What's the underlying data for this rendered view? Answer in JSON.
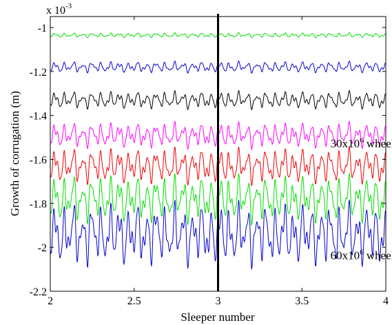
{
  "chart_data": {
    "type": "line",
    "title": "",
    "xlabel": "Sleeper number",
    "ylabel": "Growth of corrugation (m)",
    "y_scale_label": "x 10",
    "y_scale_exponent": "-3",
    "xlim": [
      2,
      4
    ],
    "ylim": [
      -2.2,
      -0.95
    ],
    "grid": false,
    "legend": "none",
    "xticks": [
      "2",
      "2.5",
      "3",
      "3.5",
      "4"
    ],
    "yticks": [
      "-1",
      "-1.2",
      "-1.4",
      "-1.6",
      "-1.8",
      "-2",
      "-2.2"
    ],
    "xtick_values": [
      2,
      2.5,
      3,
      3.5,
      4
    ],
    "ytick_values": [
      -1,
      -1.2,
      -1.4,
      -1.6,
      -1.8,
      -2,
      -2.2
    ],
    "vertical_marker_x": 3,
    "series": [
      {
        "color": "#00dd00",
        "base": -1.035,
        "amp": 0.006
      },
      {
        "color": "#0000cc",
        "base": -1.18,
        "amp": 0.014
      },
      {
        "color": "#000000",
        "base": -1.33,
        "amp": 0.022
      },
      {
        "color": "#ff00ff",
        "base": -1.49,
        "amp": 0.032
      },
      {
        "color": "#ee0000",
        "base": -1.63,
        "amp": 0.045
      },
      {
        "color": "#00dd00",
        "base": -1.78,
        "amp": 0.06
      },
      {
        "color": "#0000cc",
        "base": -1.94,
        "amp": 0.08
      }
    ],
    "annotations": [
      {
        "text_prefix": "30x10",
        "superscript": "6",
        "text_suffix": " wheel passes",
        "color": "#ff00ff",
        "x": 3.67,
        "y": -1.545
      },
      {
        "text_prefix": "60x10",
        "superscript": "6",
        "text_suffix": " wheel passes",
        "color": "#0000cc",
        "x": 3.67,
        "y": -2.055
      }
    ]
  }
}
